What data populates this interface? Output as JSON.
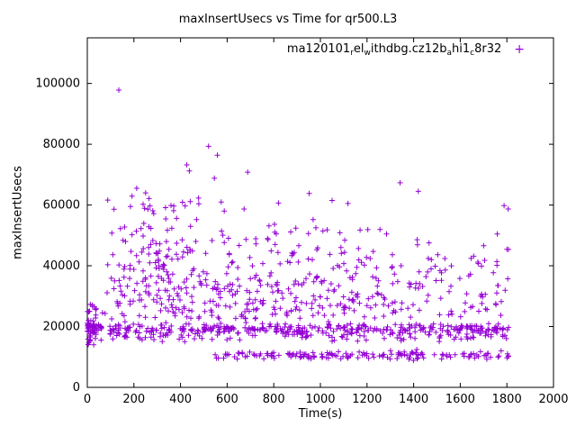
{
  "chart_data": {
    "type": "scatter",
    "title": "maxInsertUsecs vs Time for qr500.L3",
    "xlabel": "Time(s)",
    "ylabel": "maxInsertUsecs",
    "xlim": [
      0,
      2000
    ],
    "ylim": [
      0,
      115000
    ],
    "xticks": [
      0,
      200,
      400,
      600,
      800,
      1000,
      1200,
      1400,
      1600,
      1800,
      2000
    ],
    "yticks": [
      0,
      20000,
      40000,
      60000,
      80000,
      100000
    ],
    "grid": false,
    "legend_position": "top-right-inside",
    "series": [
      {
        "label_parts": [
          {
            "text": "ma120101"
          },
          {
            "text": "r",
            "sub": true
          },
          {
            "text": "el"
          },
          {
            "text": "w",
            "sub": true
          },
          {
            "text": "ithdbg.cz12b"
          },
          {
            "text": "a",
            "sub": true
          },
          {
            "text": "hi1"
          },
          {
            "text": "c",
            "sub": true
          },
          {
            "text": "8r32"
          }
        ],
        "marker": "plus",
        "color": "#9400D3",
        "marker_size": 3,
        "x_data_range": [
          0,
          1810
        ],
        "distribution_clusters": [
          {
            "name": "dense-band-high",
            "n": 300,
            "x": {
              "type": "uniform",
              "min": 2,
              "max": 1808
            },
            "y": {
              "type": "normal",
              "mu": 19300,
              "sigma": 900
            }
          },
          {
            "name": "dense-band-mid",
            "n": 150,
            "x": {
              "type": "uniform",
              "min": 2,
              "max": 1808
            },
            "y": {
              "type": "normal",
              "mu": 17200,
              "sigma": 1100
            }
          },
          {
            "name": "low-band",
            "n": 160,
            "x": {
              "type": "uniform",
              "min": 545,
              "max": 1808
            },
            "y": {
              "type": "normal",
              "mu": 10600,
              "sigma": 650,
              "min": 8800
            }
          },
          {
            "name": "mid-cloud",
            "n": 360,
            "x": {
              "type": "uniform",
              "min": 70,
              "max": 1808
            },
            "y": {
              "type": "halfnormal",
              "base": 22500,
              "sigma": 14000,
              "max": 68000
            }
          },
          {
            "name": "early-cloud",
            "n": 110,
            "x": {
              "type": "normal",
              "mu": 320,
              "sigma": 140,
              "min": 60,
              "max": 620
            },
            "y": {
              "type": "uniform",
              "min": 24000,
              "max": 63000
            }
          },
          {
            "name": "mid-cloud-2",
            "n": 70,
            "x": {
              "type": "uniform",
              "min": 600,
              "max": 1260
            },
            "y": {
              "type": "uniform",
              "min": 24000,
              "max": 56000
            }
          },
          {
            "name": "origin-cluster",
            "n": 45,
            "x": {
              "type": "uniform",
              "min": 0,
              "max": 40
            },
            "y": {
              "type": "uniform",
              "min": 14000,
              "max": 27500
            }
          }
        ],
        "outlier_points": [
          [
            135,
            97800
          ],
          [
            520,
            79300
          ],
          [
            558,
            76400
          ],
          [
            427,
            73200
          ],
          [
            438,
            71200
          ],
          [
            688,
            70800
          ],
          [
            545,
            68800
          ],
          [
            1342,
            67300
          ],
          [
            1420,
            64500
          ],
          [
            952,
            63800
          ],
          [
            1788,
            59800
          ],
          [
            212,
            65500
          ],
          [
            250,
            64000
          ],
          [
            1050,
            61500
          ],
          [
            1118,
            60500
          ]
        ]
      }
    ]
  }
}
